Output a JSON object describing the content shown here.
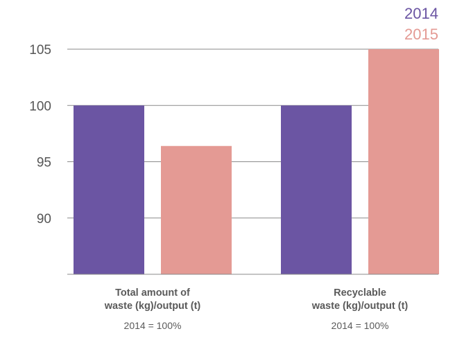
{
  "chart_data": {
    "type": "bar",
    "categories": [
      {
        "line1": "Total amount of",
        "line2": "waste (kg)/output (t)",
        "note": "2014 = 100%"
      },
      {
        "line1": "Recyclable",
        "line2": "waste (kg)/output (t)",
        "note": "2014 = 100%"
      }
    ],
    "series": [
      {
        "name": "2014",
        "color": "#6b55a3",
        "values": [
          100,
          100
        ]
      },
      {
        "name": "2015",
        "color": "#e49a94",
        "values": [
          96.4,
          105
        ]
      }
    ],
    "y_ticks": [
      90,
      95,
      100,
      105
    ],
    "ylim": [
      85,
      105
    ],
    "grid": true,
    "legend_position": "top-right"
  }
}
